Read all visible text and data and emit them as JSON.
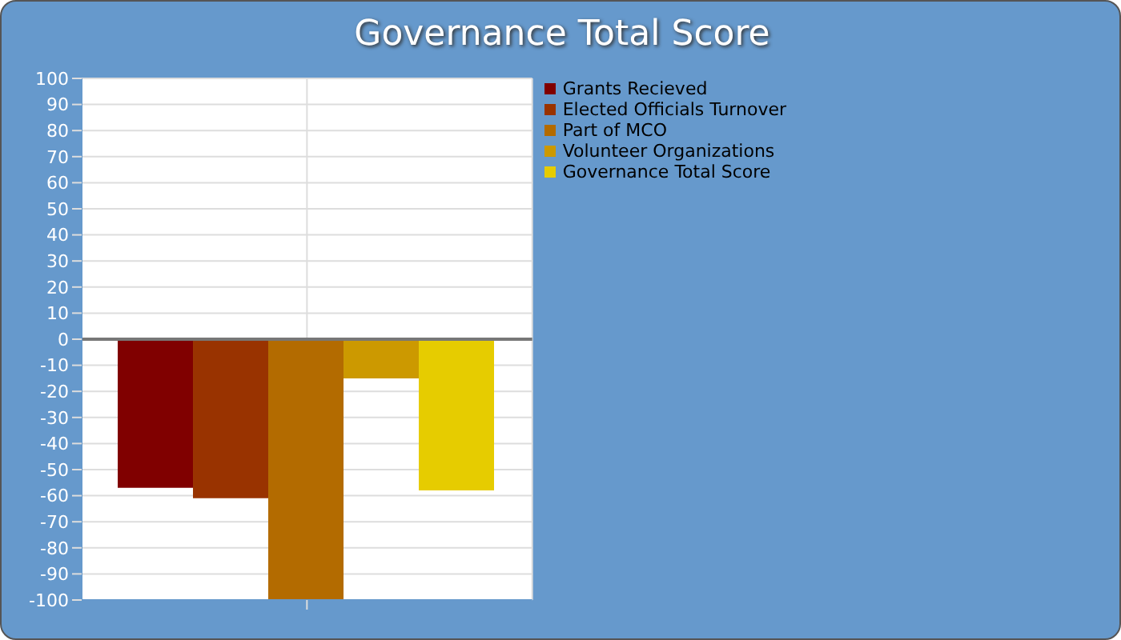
{
  "chart_data": {
    "type": "bar",
    "title": "Governance Total Score",
    "categories": [
      null
    ],
    "series": [
      {
        "name": "Grants Recieved",
        "color": "#800000",
        "values": [
          -57
        ]
      },
      {
        "name": "Elected Officials Turnover",
        "color": "#993300",
        "values": [
          -61
        ]
      },
      {
        "name": "Part of MCO",
        "color": "#b36b00",
        "values": [
          -100
        ]
      },
      {
        "name": "Volunteer Organizations",
        "color": "#cc9900",
        "values": [
          -15
        ]
      },
      {
        "name": "Governance Total Score",
        "color": "#e6cc00",
        "values": [
          -58
        ]
      }
    ],
    "ylim": [
      -100,
      100
    ],
    "yticks": [
      -100,
      -90,
      -80,
      -70,
      -60,
      -50,
      -40,
      -30,
      -20,
      -10,
      0,
      10,
      20,
      30,
      40,
      50,
      60,
      70,
      80,
      90,
      100
    ],
    "grid": true,
    "legend": "top right",
    "ref_lines": [
      {
        "axis": "y",
        "value": 0,
        "color": "#777777"
      }
    ]
  }
}
